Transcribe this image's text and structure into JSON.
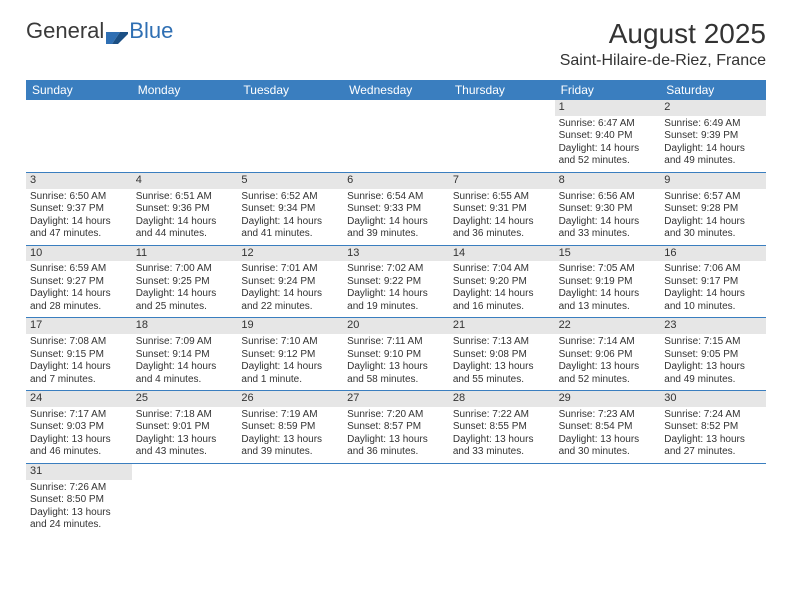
{
  "logo": {
    "part1": "General",
    "part2": "Blue"
  },
  "title": "August 2025",
  "location": "Saint-Hilaire-de-Riez, France",
  "colors": {
    "header_bg": "#3a7ebf",
    "header_text": "#ffffff",
    "daynum_bg": "#e6e6e6",
    "row_border": "#3a7ebf",
    "text": "#333333",
    "logo_blue": "#2f6fb3"
  },
  "day_names": [
    "Sunday",
    "Monday",
    "Tuesday",
    "Wednesday",
    "Thursday",
    "Friday",
    "Saturday"
  ],
  "weeks": [
    [
      {
        "day": "",
        "sunrise": "",
        "sunset": "",
        "daylight": ""
      },
      {
        "day": "",
        "sunrise": "",
        "sunset": "",
        "daylight": ""
      },
      {
        "day": "",
        "sunrise": "",
        "sunset": "",
        "daylight": ""
      },
      {
        "day": "",
        "sunrise": "",
        "sunset": "",
        "daylight": ""
      },
      {
        "day": "",
        "sunrise": "",
        "sunset": "",
        "daylight": ""
      },
      {
        "day": "1",
        "sunrise": "Sunrise: 6:47 AM",
        "sunset": "Sunset: 9:40 PM",
        "daylight": "Daylight: 14 hours and 52 minutes."
      },
      {
        "day": "2",
        "sunrise": "Sunrise: 6:49 AM",
        "sunset": "Sunset: 9:39 PM",
        "daylight": "Daylight: 14 hours and 49 minutes."
      }
    ],
    [
      {
        "day": "3",
        "sunrise": "Sunrise: 6:50 AM",
        "sunset": "Sunset: 9:37 PM",
        "daylight": "Daylight: 14 hours and 47 minutes."
      },
      {
        "day": "4",
        "sunrise": "Sunrise: 6:51 AM",
        "sunset": "Sunset: 9:36 PM",
        "daylight": "Daylight: 14 hours and 44 minutes."
      },
      {
        "day": "5",
        "sunrise": "Sunrise: 6:52 AM",
        "sunset": "Sunset: 9:34 PM",
        "daylight": "Daylight: 14 hours and 41 minutes."
      },
      {
        "day": "6",
        "sunrise": "Sunrise: 6:54 AM",
        "sunset": "Sunset: 9:33 PM",
        "daylight": "Daylight: 14 hours and 39 minutes."
      },
      {
        "day": "7",
        "sunrise": "Sunrise: 6:55 AM",
        "sunset": "Sunset: 9:31 PM",
        "daylight": "Daylight: 14 hours and 36 minutes."
      },
      {
        "day": "8",
        "sunrise": "Sunrise: 6:56 AM",
        "sunset": "Sunset: 9:30 PM",
        "daylight": "Daylight: 14 hours and 33 minutes."
      },
      {
        "day": "9",
        "sunrise": "Sunrise: 6:57 AM",
        "sunset": "Sunset: 9:28 PM",
        "daylight": "Daylight: 14 hours and 30 minutes."
      }
    ],
    [
      {
        "day": "10",
        "sunrise": "Sunrise: 6:59 AM",
        "sunset": "Sunset: 9:27 PM",
        "daylight": "Daylight: 14 hours and 28 minutes."
      },
      {
        "day": "11",
        "sunrise": "Sunrise: 7:00 AM",
        "sunset": "Sunset: 9:25 PM",
        "daylight": "Daylight: 14 hours and 25 minutes."
      },
      {
        "day": "12",
        "sunrise": "Sunrise: 7:01 AM",
        "sunset": "Sunset: 9:24 PM",
        "daylight": "Daylight: 14 hours and 22 minutes."
      },
      {
        "day": "13",
        "sunrise": "Sunrise: 7:02 AM",
        "sunset": "Sunset: 9:22 PM",
        "daylight": "Daylight: 14 hours and 19 minutes."
      },
      {
        "day": "14",
        "sunrise": "Sunrise: 7:04 AM",
        "sunset": "Sunset: 9:20 PM",
        "daylight": "Daylight: 14 hours and 16 minutes."
      },
      {
        "day": "15",
        "sunrise": "Sunrise: 7:05 AM",
        "sunset": "Sunset: 9:19 PM",
        "daylight": "Daylight: 14 hours and 13 minutes."
      },
      {
        "day": "16",
        "sunrise": "Sunrise: 7:06 AM",
        "sunset": "Sunset: 9:17 PM",
        "daylight": "Daylight: 14 hours and 10 minutes."
      }
    ],
    [
      {
        "day": "17",
        "sunrise": "Sunrise: 7:08 AM",
        "sunset": "Sunset: 9:15 PM",
        "daylight": "Daylight: 14 hours and 7 minutes."
      },
      {
        "day": "18",
        "sunrise": "Sunrise: 7:09 AM",
        "sunset": "Sunset: 9:14 PM",
        "daylight": "Daylight: 14 hours and 4 minutes."
      },
      {
        "day": "19",
        "sunrise": "Sunrise: 7:10 AM",
        "sunset": "Sunset: 9:12 PM",
        "daylight": "Daylight: 14 hours and 1 minute."
      },
      {
        "day": "20",
        "sunrise": "Sunrise: 7:11 AM",
        "sunset": "Sunset: 9:10 PM",
        "daylight": "Daylight: 13 hours and 58 minutes."
      },
      {
        "day": "21",
        "sunrise": "Sunrise: 7:13 AM",
        "sunset": "Sunset: 9:08 PM",
        "daylight": "Daylight: 13 hours and 55 minutes."
      },
      {
        "day": "22",
        "sunrise": "Sunrise: 7:14 AM",
        "sunset": "Sunset: 9:06 PM",
        "daylight": "Daylight: 13 hours and 52 minutes."
      },
      {
        "day": "23",
        "sunrise": "Sunrise: 7:15 AM",
        "sunset": "Sunset: 9:05 PM",
        "daylight": "Daylight: 13 hours and 49 minutes."
      }
    ],
    [
      {
        "day": "24",
        "sunrise": "Sunrise: 7:17 AM",
        "sunset": "Sunset: 9:03 PM",
        "daylight": "Daylight: 13 hours and 46 minutes."
      },
      {
        "day": "25",
        "sunrise": "Sunrise: 7:18 AM",
        "sunset": "Sunset: 9:01 PM",
        "daylight": "Daylight: 13 hours and 43 minutes."
      },
      {
        "day": "26",
        "sunrise": "Sunrise: 7:19 AM",
        "sunset": "Sunset: 8:59 PM",
        "daylight": "Daylight: 13 hours and 39 minutes."
      },
      {
        "day": "27",
        "sunrise": "Sunrise: 7:20 AM",
        "sunset": "Sunset: 8:57 PM",
        "daylight": "Daylight: 13 hours and 36 minutes."
      },
      {
        "day": "28",
        "sunrise": "Sunrise: 7:22 AM",
        "sunset": "Sunset: 8:55 PM",
        "daylight": "Daylight: 13 hours and 33 minutes."
      },
      {
        "day": "29",
        "sunrise": "Sunrise: 7:23 AM",
        "sunset": "Sunset: 8:54 PM",
        "daylight": "Daylight: 13 hours and 30 minutes."
      },
      {
        "day": "30",
        "sunrise": "Sunrise: 7:24 AM",
        "sunset": "Sunset: 8:52 PM",
        "daylight": "Daylight: 13 hours and 27 minutes."
      }
    ],
    [
      {
        "day": "31",
        "sunrise": "Sunrise: 7:26 AM",
        "sunset": "Sunset: 8:50 PM",
        "daylight": "Daylight: 13 hours and 24 minutes."
      },
      {
        "day": "",
        "sunrise": "",
        "sunset": "",
        "daylight": ""
      },
      {
        "day": "",
        "sunrise": "",
        "sunset": "",
        "daylight": ""
      },
      {
        "day": "",
        "sunrise": "",
        "sunset": "",
        "daylight": ""
      },
      {
        "day": "",
        "sunrise": "",
        "sunset": "",
        "daylight": ""
      },
      {
        "day": "",
        "sunrise": "",
        "sunset": "",
        "daylight": ""
      },
      {
        "day": "",
        "sunrise": "",
        "sunset": "",
        "daylight": ""
      }
    ]
  ]
}
